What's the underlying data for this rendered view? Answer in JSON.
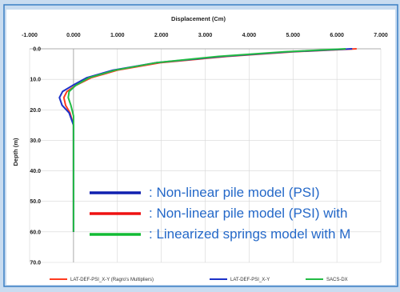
{
  "slide": {
    "caption": "",
    "colors": {
      "background": "#c9dcf0",
      "border": "#3a7fc4",
      "plot_bg": "#ffffff",
      "callout_text": "#2468c8"
    }
  },
  "callouts": [
    {
      "text": ": Non-linear pile model (PSI)",
      "color": "#1020b0"
    },
    {
      "text": ": Non-linear pile model (PSI) with",
      "color": "#ee1111"
    },
    {
      "text": ": Linearized springs model with M",
      "color": "#11bb33"
    }
  ],
  "chart_data": {
    "type": "line",
    "title": "",
    "xlabel": "Displacement (Cm)",
    "ylabel": "Depth (m)",
    "xlim": [
      -1.0,
      7.0
    ],
    "ylim": [
      0.0,
      70.0
    ],
    "y_inverted": true,
    "x_axis_position": "top",
    "x_ticks": [
      "-1.000",
      "0.000",
      "1.000",
      "2.000",
      "3.000",
      "4.000",
      "5.000",
      "6.000",
      "7.000"
    ],
    "y_ticks": [
      "0.0",
      "10.0",
      "20.0",
      "30.0",
      "40.0",
      "50.0",
      "60.0",
      "70.0"
    ],
    "grid": true,
    "legend_position": "bottom",
    "series": [
      {
        "name": "LAT-DEF-PSI_X-Y (Ragro's Multipliers)",
        "color": "#ff3b1f",
        "x": [
          6.45,
          5.0,
          3.5,
          2.0,
          1.0,
          0.4,
          0.05,
          -0.15,
          -0.22,
          -0.18,
          -0.08,
          0.0,
          0.0,
          0.0
        ],
        "y": [
          0,
          1.0,
          2.5,
          4.5,
          7.0,
          9.5,
          12.0,
          14.0,
          16.0,
          18.5,
          21.0,
          25.0,
          40.0,
          60.0
        ]
      },
      {
        "name": "LAT-DEF-PSI_X-Y",
        "color": "#1c30c8",
        "x": [
          6.35,
          4.9,
          3.4,
          1.9,
          0.9,
          0.3,
          -0.02,
          -0.25,
          -0.32,
          -0.26,
          -0.1,
          0.0,
          0.0,
          0.0
        ],
        "y": [
          0,
          1.0,
          2.5,
          4.5,
          7.0,
          9.5,
          12.0,
          14.0,
          16.0,
          18.5,
          21.0,
          25.0,
          40.0,
          60.0
        ]
      },
      {
        "name": "SACS-DX",
        "color": "#22bb44",
        "x": [
          6.2,
          4.8,
          3.3,
          1.9,
          0.95,
          0.35,
          0.05,
          -0.1,
          -0.12,
          -0.06,
          0.0,
          0.0,
          0.0
        ],
        "y": [
          0,
          1.0,
          2.5,
          4.5,
          7.0,
          9.5,
          12.0,
          14.0,
          16.0,
          18.5,
          22.0,
          40.0,
          60.0
        ]
      }
    ]
  }
}
